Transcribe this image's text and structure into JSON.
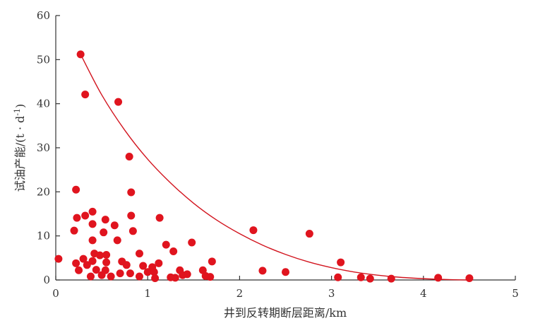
{
  "chart_data": {
    "type": "scatter",
    "xlabel": "井到反转期断层距离/km",
    "ylabel_main": "试油产能/(t · d",
    "ylabel_sup": "-1",
    "ylabel_close": ")",
    "xlim": [
      0,
      5
    ],
    "ylim": [
      0,
      60
    ],
    "xticks": [
      0,
      1,
      2,
      3,
      4,
      5
    ],
    "yticks": [
      0,
      10,
      20,
      30,
      40,
      50,
      60
    ],
    "xtick_labels": [
      "0",
      "1",
      "2",
      "3",
      "4",
      "5"
    ],
    "ytick_labels": [
      "0",
      "10",
      "20",
      "30",
      "40",
      "50",
      "60"
    ],
    "grid": false,
    "point_color": "#e0141e",
    "curve_color": "#d2141e",
    "points": [
      {
        "x": 0.03,
        "y": 4.8
      },
      {
        "x": 0.2,
        "y": 11.2
      },
      {
        "x": 0.22,
        "y": 20.5
      },
      {
        "x": 0.23,
        "y": 14.1
      },
      {
        "x": 0.22,
        "y": 3.8
      },
      {
        "x": 0.25,
        "y": 2.2
      },
      {
        "x": 0.27,
        "y": 51.2
      },
      {
        "x": 0.3,
        "y": 4.8
      },
      {
        "x": 0.32,
        "y": 42.1
      },
      {
        "x": 0.32,
        "y": 14.6
      },
      {
        "x": 0.34,
        "y": 3.4
      },
      {
        "x": 0.38,
        "y": 0.8
      },
      {
        "x": 0.4,
        "y": 15.5
      },
      {
        "x": 0.4,
        "y": 12.7
      },
      {
        "x": 0.4,
        "y": 9.0
      },
      {
        "x": 0.4,
        "y": 4.3
      },
      {
        "x": 0.42,
        "y": 6.0
      },
      {
        "x": 0.44,
        "y": 2.3
      },
      {
        "x": 0.48,
        "y": 5.6
      },
      {
        "x": 0.5,
        "y": 1.1
      },
      {
        "x": 0.52,
        "y": 10.8
      },
      {
        "x": 0.54,
        "y": 13.7
      },
      {
        "x": 0.55,
        "y": 5.7
      },
      {
        "x": 0.55,
        "y": 4.0
      },
      {
        "x": 0.54,
        "y": 2.2
      },
      {
        "x": 0.6,
        "y": 0.8
      },
      {
        "x": 0.64,
        "y": 12.4
      },
      {
        "x": 0.67,
        "y": 9.0
      },
      {
        "x": 0.68,
        "y": 40.4
      },
      {
        "x": 0.7,
        "y": 1.5
      },
      {
        "x": 0.72,
        "y": 4.2
      },
      {
        "x": 0.77,
        "y": 3.4
      },
      {
        "x": 0.8,
        "y": 28.0
      },
      {
        "x": 0.81,
        "y": 1.5
      },
      {
        "x": 0.82,
        "y": 19.9
      },
      {
        "x": 0.82,
        "y": 14.6
      },
      {
        "x": 0.84,
        "y": 11.1
      },
      {
        "x": 0.91,
        "y": 6.0
      },
      {
        "x": 0.91,
        "y": 0.8
      },
      {
        "x": 0.95,
        "y": 3.2
      },
      {
        "x": 1.0,
        "y": 1.8
      },
      {
        "x": 1.05,
        "y": 2.9
      },
      {
        "x": 1.07,
        "y": 1.8
      },
      {
        "x": 1.08,
        "y": 0.4
      },
      {
        "x": 1.12,
        "y": 3.8
      },
      {
        "x": 1.13,
        "y": 14.1
      },
      {
        "x": 1.2,
        "y": 8.0
      },
      {
        "x": 1.25,
        "y": 0.6
      },
      {
        "x": 1.28,
        "y": 6.5
      },
      {
        "x": 1.3,
        "y": 0.5
      },
      {
        "x": 1.35,
        "y": 2.2
      },
      {
        "x": 1.38,
        "y": 1.1
      },
      {
        "x": 1.43,
        "y": 1.3
      },
      {
        "x": 1.48,
        "y": 8.5
      },
      {
        "x": 1.6,
        "y": 2.2
      },
      {
        "x": 1.63,
        "y": 0.9
      },
      {
        "x": 1.68,
        "y": 0.7
      },
      {
        "x": 1.7,
        "y": 4.2
      },
      {
        "x": 2.15,
        "y": 11.3
      },
      {
        "x": 2.25,
        "y": 2.1
      },
      {
        "x": 2.5,
        "y": 1.8
      },
      {
        "x": 2.76,
        "y": 10.5
      },
      {
        "x": 3.07,
        "y": 0.6
      },
      {
        "x": 3.1,
        "y": 4.0
      },
      {
        "x": 3.32,
        "y": 0.6
      },
      {
        "x": 3.42,
        "y": 0.3
      },
      {
        "x": 3.65,
        "y": 0.3
      },
      {
        "x": 4.16,
        "y": 0.5
      },
      {
        "x": 4.5,
        "y": 0.4
      }
    ],
    "trend_curve": [
      {
        "x": 0.27,
        "y": 51.2
      },
      {
        "x": 0.5,
        "y": 42.0
      },
      {
        "x": 0.75,
        "y": 34.0
      },
      {
        "x": 1.0,
        "y": 27.4
      },
      {
        "x": 1.25,
        "y": 22.0
      },
      {
        "x": 1.5,
        "y": 17.4
      },
      {
        "x": 1.75,
        "y": 13.6
      },
      {
        "x": 2.0,
        "y": 10.5
      },
      {
        "x": 2.25,
        "y": 7.9
      },
      {
        "x": 2.5,
        "y": 5.8
      },
      {
        "x": 2.75,
        "y": 4.1
      },
      {
        "x": 3.0,
        "y": 2.8
      },
      {
        "x": 3.25,
        "y": 1.8
      },
      {
        "x": 3.5,
        "y": 1.1
      },
      {
        "x": 3.75,
        "y": 0.6
      },
      {
        "x": 4.0,
        "y": 0.3
      },
      {
        "x": 4.25,
        "y": 0.1
      },
      {
        "x": 4.5,
        "y": 0.0
      }
    ]
  }
}
